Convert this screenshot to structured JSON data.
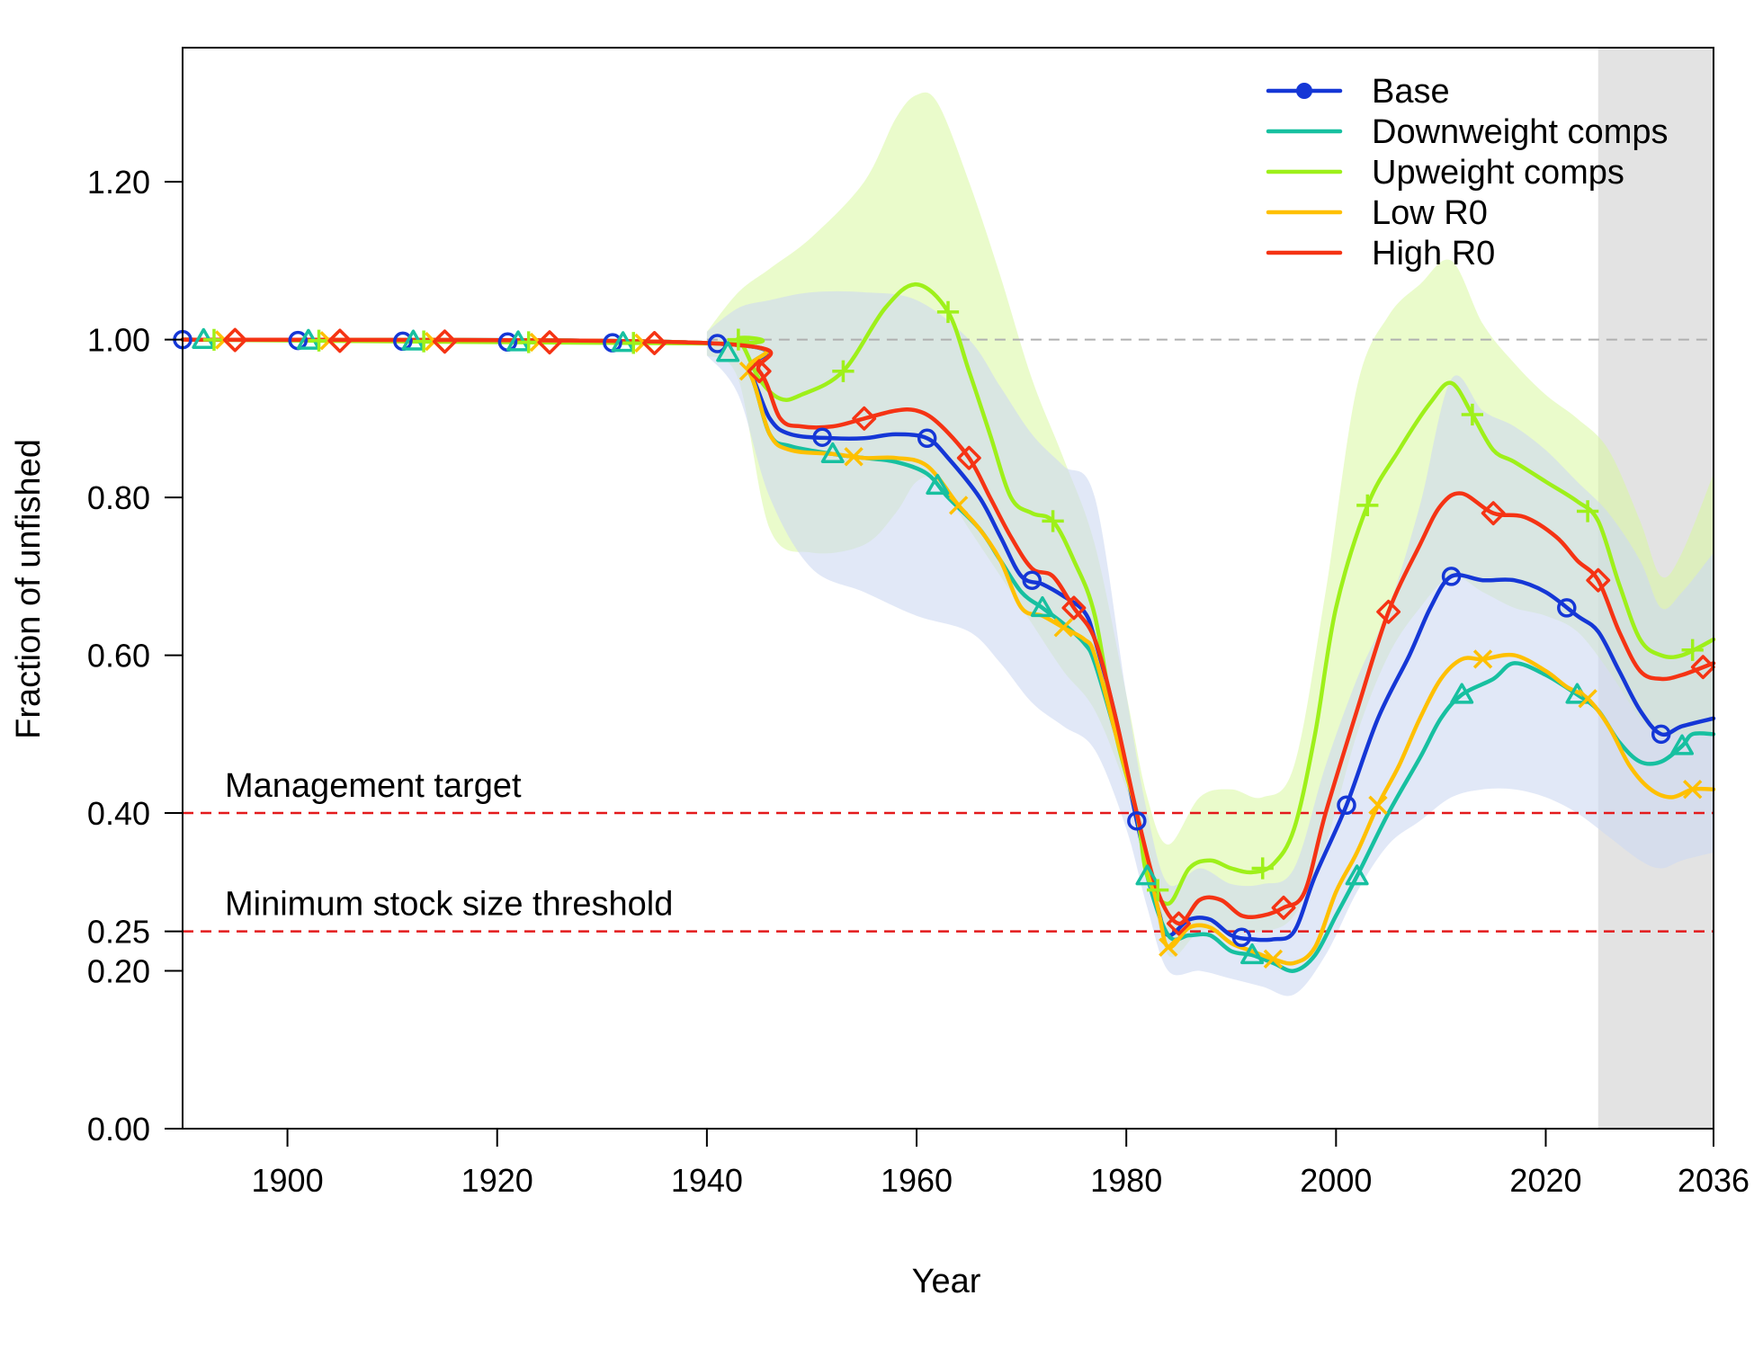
{
  "chart_data": {
    "type": "line",
    "title": "",
    "xlabel": "Year",
    "ylabel": "Fraction of unfished",
    "xlim": [
      1890,
      2036
    ],
    "ylim": [
      0,
      1.37
    ],
    "x_ticks": [
      "1900",
      "1920",
      "1940",
      "1960",
      "1980",
      "2000",
      "2020",
      "2036"
    ],
    "y_ticks": [
      "0.00",
      "0.20",
      "0.25",
      "0.40",
      "0.60",
      "0.80",
      "1.00",
      "1.20"
    ],
    "forecast_region": [
      2025,
      2036
    ],
    "unfished_reference": 1.0,
    "reference_lines": [
      {
        "label": "Management target",
        "value": 0.4,
        "color": "#e31a1c"
      },
      {
        "label": "Minimum stock size threshold",
        "value": 0.25,
        "color": "#e31a1c"
      }
    ],
    "legend_position": "top-right",
    "series": [
      {
        "name": "Base",
        "color": "#1537d6",
        "marker": "circle",
        "points": [
          [
            1890,
            1.0
          ],
          [
            1941,
            0.995
          ],
          [
            1944,
            0.96
          ],
          [
            1946,
            0.9
          ],
          [
            1948,
            0.88
          ],
          [
            1952,
            0.875
          ],
          [
            1955,
            0.875
          ],
          [
            1958,
            0.88
          ],
          [
            1961,
            0.875
          ],
          [
            1963,
            0.85
          ],
          [
            1966,
            0.8
          ],
          [
            1968,
            0.75
          ],
          [
            1970,
            0.7
          ],
          [
            1972,
            0.69
          ],
          [
            1974,
            0.675
          ],
          [
            1976,
            0.655
          ],
          [
            1977,
            0.62
          ],
          [
            1979,
            0.52
          ],
          [
            1981,
            0.39
          ],
          [
            1983,
            0.28
          ],
          [
            1984,
            0.245
          ],
          [
            1986,
            0.265
          ],
          [
            1988,
            0.265
          ],
          [
            1990,
            0.245
          ],
          [
            1992,
            0.24
          ],
          [
            1994,
            0.24
          ],
          [
            1996,
            0.25
          ],
          [
            1998,
            0.32
          ],
          [
            2001,
            0.41
          ],
          [
            2004,
            0.52
          ],
          [
            2007,
            0.6
          ],
          [
            2009,
            0.66
          ],
          [
            2011,
            0.7
          ],
          [
            2014,
            0.695
          ],
          [
            2017,
            0.695
          ],
          [
            2020,
            0.68
          ],
          [
            2023,
            0.65
          ],
          [
            2025,
            0.63
          ],
          [
            2027,
            0.58
          ],
          [
            2029,
            0.53
          ],
          [
            2031,
            0.5
          ],
          [
            2033,
            0.51
          ],
          [
            2036,
            0.52
          ]
        ],
        "markers": [
          1890,
          1901,
          1911,
          1921,
          1931,
          1941,
          1951,
          1961,
          1971,
          1981,
          1991,
          2001,
          2011,
          2022,
          2031
        ]
      },
      {
        "name": "Downweight comps",
        "color": "#17c0a0",
        "marker": "triangle",
        "points": [
          [
            1890,
            1.0
          ],
          [
            1941,
            0.995
          ],
          [
            1944,
            0.96
          ],
          [
            1946,
            0.88
          ],
          [
            1948,
            0.865
          ],
          [
            1952,
            0.855
          ],
          [
            1955,
            0.85
          ],
          [
            1958,
            0.845
          ],
          [
            1961,
            0.83
          ],
          [
            1963,
            0.8
          ],
          [
            1966,
            0.76
          ],
          [
            1968,
            0.72
          ],
          [
            1970,
            0.68
          ],
          [
            1972,
            0.66
          ],
          [
            1974,
            0.64
          ],
          [
            1976,
            0.615
          ],
          [
            1977,
            0.59
          ],
          [
            1979,
            0.5
          ],
          [
            1981,
            0.4
          ],
          [
            1982,
            0.32
          ],
          [
            1984,
            0.245
          ],
          [
            1986,
            0.245
          ],
          [
            1988,
            0.245
          ],
          [
            1990,
            0.225
          ],
          [
            1992,
            0.22
          ],
          [
            1994,
            0.21
          ],
          [
            1996,
            0.2
          ],
          [
            1998,
            0.22
          ],
          [
            2000,
            0.27
          ],
          [
            2002,
            0.32
          ],
          [
            2005,
            0.4
          ],
          [
            2008,
            0.47
          ],
          [
            2010,
            0.52
          ],
          [
            2012,
            0.55
          ],
          [
            2015,
            0.57
          ],
          [
            2017,
            0.59
          ],
          [
            2020,
            0.575
          ],
          [
            2023,
            0.55
          ],
          [
            2025,
            0.53
          ],
          [
            2027,
            0.49
          ],
          [
            2029,
            0.465
          ],
          [
            2031,
            0.465
          ],
          [
            2033,
            0.485
          ],
          [
            2034,
            0.5
          ],
          [
            2036,
            0.5
          ]
        ],
        "markers": [
          1892,
          1902,
          1912,
          1922,
          1932,
          1942,
          1952,
          1962,
          1972,
          1982,
          1992,
          2002,
          2012,
          2023,
          2033
        ]
      },
      {
        "name": "Upweight comps",
        "color": "#9ef01a",
        "marker": "plus",
        "points": [
          [
            1890,
            1.0
          ],
          [
            1941,
            0.995
          ],
          [
            1943,
            1.0
          ],
          [
            1945,
            0.95
          ],
          [
            1947,
            0.925
          ],
          [
            1949,
            0.93
          ],
          [
            1953,
            0.96
          ],
          [
            1957,
            1.04
          ],
          [
            1960,
            1.07
          ],
          [
            1963,
            1.035
          ],
          [
            1965,
            0.96
          ],
          [
            1967,
            0.88
          ],
          [
            1969,
            0.8
          ],
          [
            1971,
            0.78
          ],
          [
            1973,
            0.77
          ],
          [
            1975,
            0.72
          ],
          [
            1977,
            0.65
          ],
          [
            1979,
            0.5
          ],
          [
            1981,
            0.4
          ],
          [
            1982,
            0.32
          ],
          [
            1984,
            0.285
          ],
          [
            1986,
            0.33
          ],
          [
            1988,
            0.34
          ],
          [
            1990,
            0.33
          ],
          [
            1992,
            0.325
          ],
          [
            1994,
            0.335
          ],
          [
            1996,
            0.38
          ],
          [
            1998,
            0.5
          ],
          [
            2000,
            0.66
          ],
          [
            2003,
            0.79
          ],
          [
            2006,
            0.86
          ],
          [
            2009,
            0.92
          ],
          [
            2011,
            0.945
          ],
          [
            2013,
            0.905
          ],
          [
            2015,
            0.86
          ],
          [
            2017,
            0.845
          ],
          [
            2020,
            0.82
          ],
          [
            2023,
            0.795
          ],
          [
            2025,
            0.77
          ],
          [
            2027,
            0.69
          ],
          [
            2029,
            0.62
          ],
          [
            2031,
            0.6
          ],
          [
            2033,
            0.6
          ],
          [
            2036,
            0.62
          ]
        ],
        "markers": [
          1893,
          1903,
          1913,
          1923,
          1933,
          1943,
          1953,
          1963,
          1973,
          1983,
          1993,
          2003,
          2013,
          2024,
          2034
        ]
      },
      {
        "name": "Low R0",
        "color": "#ffc000",
        "marker": "x",
        "points": [
          [
            1890,
            1.0
          ],
          [
            1941,
            0.995
          ],
          [
            1944,
            0.96
          ],
          [
            1946,
            0.88
          ],
          [
            1948,
            0.86
          ],
          [
            1952,
            0.855
          ],
          [
            1955,
            0.85
          ],
          [
            1958,
            0.85
          ],
          [
            1961,
            0.84
          ],
          [
            1964,
            0.79
          ],
          [
            1966,
            0.76
          ],
          [
            1968,
            0.72
          ],
          [
            1970,
            0.66
          ],
          [
            1972,
            0.65
          ],
          [
            1974,
            0.635
          ],
          [
            1976,
            0.62
          ],
          [
            1977,
            0.6
          ],
          [
            1979,
            0.5
          ],
          [
            1981,
            0.4
          ],
          [
            1983,
            0.28
          ],
          [
            1984,
            0.23
          ],
          [
            1986,
            0.255
          ],
          [
            1988,
            0.255
          ],
          [
            1990,
            0.235
          ],
          [
            1992,
            0.225
          ],
          [
            1994,
            0.215
          ],
          [
            1996,
            0.21
          ],
          [
            1998,
            0.23
          ],
          [
            2000,
            0.3
          ],
          [
            2002,
            0.35
          ],
          [
            2004,
            0.41
          ],
          [
            2006,
            0.46
          ],
          [
            2008,
            0.52
          ],
          [
            2010,
            0.57
          ],
          [
            2012,
            0.595
          ],
          [
            2014,
            0.595
          ],
          [
            2017,
            0.6
          ],
          [
            2020,
            0.58
          ],
          [
            2022,
            0.56
          ],
          [
            2024,
            0.545
          ],
          [
            2026,
            0.51
          ],
          [
            2028,
            0.46
          ],
          [
            2030,
            0.43
          ],
          [
            2032,
            0.42
          ],
          [
            2034,
            0.43
          ],
          [
            2036,
            0.43
          ]
        ],
        "markers": [
          1894,
          1904,
          1914,
          1924,
          1934,
          1944,
          1954,
          1964,
          1974,
          1984,
          1994,
          2004,
          2014,
          2024,
          2034
        ]
      },
      {
        "name": "High R0",
        "color": "#f53314",
        "marker": "diamond",
        "points": [
          [
            1890,
            1.0
          ],
          [
            1941,
            0.995
          ],
          [
            1945,
            0.96
          ],
          [
            1947,
            0.9
          ],
          [
            1949,
            0.89
          ],
          [
            1952,
            0.89
          ],
          [
            1955,
            0.9
          ],
          [
            1958,
            0.91
          ],
          [
            1960,
            0.91
          ],
          [
            1962,
            0.895
          ],
          [
            1965,
            0.85
          ],
          [
            1967,
            0.8
          ],
          [
            1969,
            0.75
          ],
          [
            1971,
            0.71
          ],
          [
            1973,
            0.7
          ],
          [
            1975,
            0.66
          ],
          [
            1977,
            0.62
          ],
          [
            1979,
            0.52
          ],
          [
            1981,
            0.4
          ],
          [
            1983,
            0.3
          ],
          [
            1985,
            0.26
          ],
          [
            1987,
            0.29
          ],
          [
            1989,
            0.29
          ],
          [
            1991,
            0.27
          ],
          [
            1993,
            0.27
          ],
          [
            1995,
            0.28
          ],
          [
            1997,
            0.3
          ],
          [
            1999,
            0.4
          ],
          [
            2002,
            0.53
          ],
          [
            2005,
            0.655
          ],
          [
            2008,
            0.74
          ],
          [
            2010,
            0.79
          ],
          [
            2012,
            0.805
          ],
          [
            2015,
            0.78
          ],
          [
            2018,
            0.775
          ],
          [
            2021,
            0.75
          ],
          [
            2023,
            0.72
          ],
          [
            2025,
            0.695
          ],
          [
            2027,
            0.63
          ],
          [
            2029,
            0.58
          ],
          [
            2031,
            0.57
          ],
          [
            2033,
            0.575
          ],
          [
            2036,
            0.59
          ]
        ],
        "markers": [
          1895,
          1905,
          1915,
          1925,
          1935,
          1945,
          1955,
          1965,
          1975,
          1985,
          1995,
          2005,
          2015,
          2025,
          2035
        ]
      }
    ],
    "intervals": [
      {
        "series": "Upweight comps",
        "color": "#d9f7a0",
        "x": [
          1940,
          1943,
          1946,
          1950,
          1955,
          1958,
          1960,
          1962,
          1965,
          1968,
          1971,
          1974,
          1977,
          1980,
          1982,
          1984,
          1987,
          1990,
          1993,
          1996,
          1999,
          2002,
          2005,
          2008,
          2011,
          2014,
          2017,
          2020,
          2023,
          2026,
          2029,
          2031,
          2033,
          2036
        ],
        "lower": [
          0.98,
          0.95,
          0.76,
          0.73,
          0.74,
          0.78,
          0.82,
          0.82,
          0.76,
          0.7,
          0.64,
          0.58,
          0.53,
          0.43,
          0.33,
          0.22,
          0.25,
          0.25,
          0.25,
          0.27,
          0.36,
          0.5,
          0.6,
          0.66,
          0.7,
          0.68,
          0.66,
          0.65,
          0.63,
          0.58,
          0.52,
          0.5,
          0.5,
          0.5
        ],
        "upper": [
          1.01,
          1.06,
          1.09,
          1.13,
          1.2,
          1.28,
          1.31,
          1.3,
          1.2,
          1.08,
          0.95,
          0.85,
          0.74,
          0.55,
          0.42,
          0.36,
          0.42,
          0.43,
          0.42,
          0.46,
          0.68,
          0.94,
          1.03,
          1.07,
          1.1,
          1.02,
          0.97,
          0.93,
          0.9,
          0.86,
          0.77,
          0.7,
          0.73,
          0.83
        ]
      },
      {
        "series": "Base",
        "color": "#cdd8f2",
        "x": [
          1940,
          1943,
          1946,
          1950,
          1955,
          1960,
          1965,
          1968,
          1971,
          1974,
          1977,
          1980,
          1982,
          1984,
          1987,
          1990,
          1993,
          1996,
          1999,
          2002,
          2005,
          2008,
          2011,
          2014,
          2017,
          2020,
          2023,
          2026,
          2029,
          2031,
          2033,
          2036
        ],
        "lower": [
          0.98,
          0.93,
          0.8,
          0.71,
          0.68,
          0.65,
          0.63,
          0.59,
          0.54,
          0.51,
          0.48,
          0.38,
          0.28,
          0.2,
          0.2,
          0.19,
          0.18,
          0.17,
          0.22,
          0.3,
          0.36,
          0.39,
          0.42,
          0.43,
          0.43,
          0.42,
          0.4,
          0.37,
          0.34,
          0.33,
          0.34,
          0.35
        ],
        "upper": [
          1.01,
          1.04,
          1.05,
          1.06,
          1.06,
          1.05,
          1.0,
          0.94,
          0.88,
          0.84,
          0.8,
          0.55,
          0.4,
          0.31,
          0.33,
          0.31,
          0.31,
          0.33,
          0.46,
          0.57,
          0.66,
          0.79,
          0.95,
          0.91,
          0.89,
          0.86,
          0.82,
          0.78,
          0.72,
          0.66,
          0.68,
          0.73
        ]
      }
    ]
  }
}
